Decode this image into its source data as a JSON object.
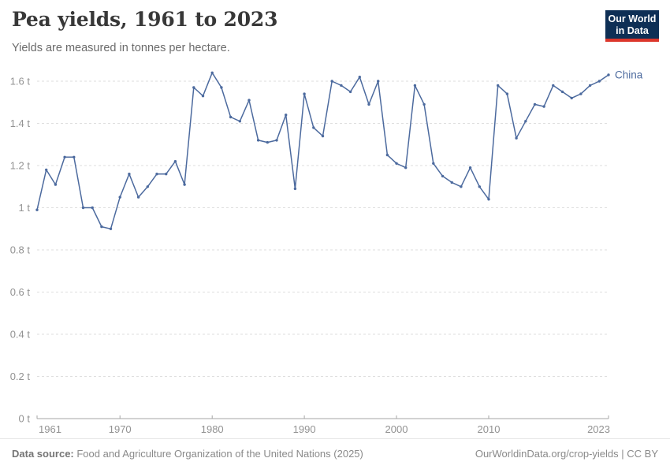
{
  "header": {
    "title": "Pea yields, 1961 to 2023",
    "subtitle": "Yields are measured in tonnes per hectare.",
    "logo_line1": "Our World",
    "logo_line2": "in Data"
  },
  "chart_data": {
    "type": "line",
    "title": "Pea yields, 1961 to 2023",
    "unit": "tonnes per hectare",
    "grid": true,
    "legend_position": "end-of-line",
    "xlim": [
      1961,
      2023
    ],
    "ylim": [
      0,
      1.6
    ],
    "x_ticks": [
      1961,
      1970,
      1980,
      1990,
      2000,
      2010,
      2023
    ],
    "x_tick_labels": [
      "1961",
      "1970",
      "1980",
      "1990",
      "2000",
      "2010",
      "2023"
    ],
    "y_ticks": [
      0,
      0.2,
      0.4,
      0.6,
      0.8,
      1.0,
      1.2,
      1.4,
      1.6
    ],
    "y_tick_labels": [
      "0 t",
      "0.2 t",
      "0.4 t",
      "0.6 t",
      "0.8 t",
      "1 t",
      "1.2 t",
      "1.4 t",
      "1.6 t"
    ],
    "x": [
      1961,
      1962,
      1963,
      1964,
      1965,
      1966,
      1967,
      1968,
      1969,
      1970,
      1971,
      1972,
      1973,
      1974,
      1975,
      1976,
      1977,
      1978,
      1979,
      1980,
      1981,
      1982,
      1983,
      1984,
      1985,
      1986,
      1987,
      1988,
      1989,
      1990,
      1991,
      1992,
      1993,
      1994,
      1995,
      1996,
      1997,
      1998,
      1999,
      2000,
      2001,
      2002,
      2003,
      2004,
      2005,
      2006,
      2007,
      2008,
      2009,
      2010,
      2011,
      2012,
      2013,
      2014,
      2015,
      2016,
      2017,
      2018,
      2019,
      2020,
      2021,
      2022,
      2023
    ],
    "series": [
      {
        "name": "China",
        "color": "#4C6A9E",
        "values": [
          0.99,
          1.18,
          1.11,
          1.24,
          1.24,
          1.0,
          1.0,
          0.91,
          0.9,
          1.05,
          1.16,
          1.05,
          1.1,
          1.16,
          1.16,
          1.22,
          1.11,
          1.57,
          1.53,
          1.64,
          1.57,
          1.43,
          1.41,
          1.51,
          1.32,
          1.31,
          1.32,
          1.44,
          1.09,
          1.54,
          1.38,
          1.34,
          1.6,
          1.58,
          1.55,
          1.62,
          1.49,
          1.6,
          1.25,
          1.21,
          1.19,
          1.58,
          1.49,
          1.21,
          1.15,
          1.12,
          1.1,
          1.19,
          1.1,
          1.04,
          1.58,
          1.54,
          1.33,
          1.41,
          1.49,
          1.48,
          1.58,
          1.55,
          1.52,
          1.54,
          1.58,
          1.6,
          1.63
        ]
      }
    ]
  },
  "colors": {
    "line": "#4C6A9E",
    "grid": "#dedede",
    "axis": "#a6a6a6",
    "tick_label": "#929292",
    "logo_bg": "#0e2f55",
    "logo_red": "#dc362b"
  },
  "footer": {
    "datasource_label": "Data source:",
    "datasource_text": " Food and Agriculture Organization of the United Nations (2025)",
    "credit": "OurWorldinData.org/crop-yields | CC BY"
  }
}
